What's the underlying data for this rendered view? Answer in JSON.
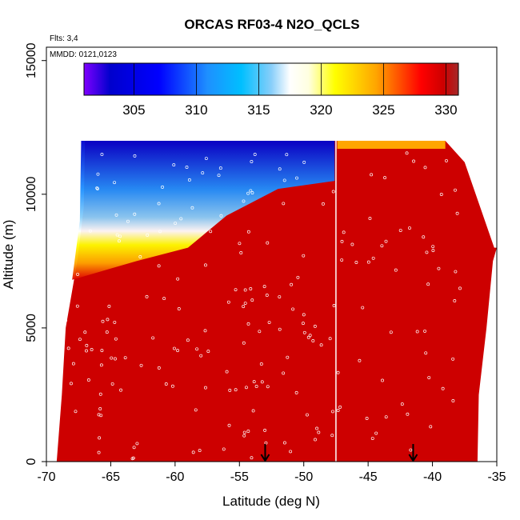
{
  "chart_data": {
    "type": "heatmap",
    "title": "ORCAS RF03-4 N2O_QCLS",
    "flights_note": "Flts: 3,4",
    "dates_note": "MMDD: 0121,0123",
    "xlabel": "Latitude (deg N)",
    "ylabel": "Altitude (m)",
    "xlim": [
      -70,
      -35
    ],
    "ylim": [
      0,
      15500
    ],
    "x_ticks": [
      -70,
      -65,
      -60,
      -55,
      -50,
      -45,
      -40,
      -35
    ],
    "y_ticks": [
      0,
      5000,
      10000,
      15000
    ],
    "colorbar": {
      "min": 301,
      "max": 331,
      "ticks": [
        305,
        310,
        315,
        320,
        325,
        330
      ],
      "colors": [
        "#7f00ff",
        "#0000cd",
        "#0000ff",
        "#1e90ff",
        "#00bfff",
        "#87cefa",
        "#ffffff",
        "#ffffe0",
        "#ffff00",
        "#ffd700",
        "#ffa500",
        "#ff4500",
        "#ff0000",
        "#cd0000",
        "#a52a2a"
      ]
    },
    "background_value": 329,
    "curtain_top_altitude": [
      [
        -69,
        12000
      ],
      [
        -52,
        12000
      ],
      [
        -39,
        12000
      ],
      [
        -37.5,
        11200
      ],
      [
        -35.2,
        8000
      ]
    ],
    "curtain_left_edge": [
      [
        0,
        -69.2
      ],
      [
        2500,
        -68.8
      ],
      [
        5000,
        -68.5
      ],
      [
        7500,
        -67.6
      ],
      [
        9500,
        -67.1
      ],
      [
        12000,
        -67
      ]
    ],
    "curtain_right_edge": [
      [
        0,
        -36.5
      ],
      [
        2500,
        -36.4
      ],
      [
        5000,
        -35.8
      ],
      [
        7500,
        -35.3
      ],
      [
        8000,
        -35
      ]
    ],
    "gap_latitude": -47.5,
    "markers": [
      {
        "name": "arrow",
        "lat": -53,
        "alt": 0
      },
      {
        "name": "arrow",
        "lat": -41.5,
        "alt": 0
      }
    ]
  }
}
